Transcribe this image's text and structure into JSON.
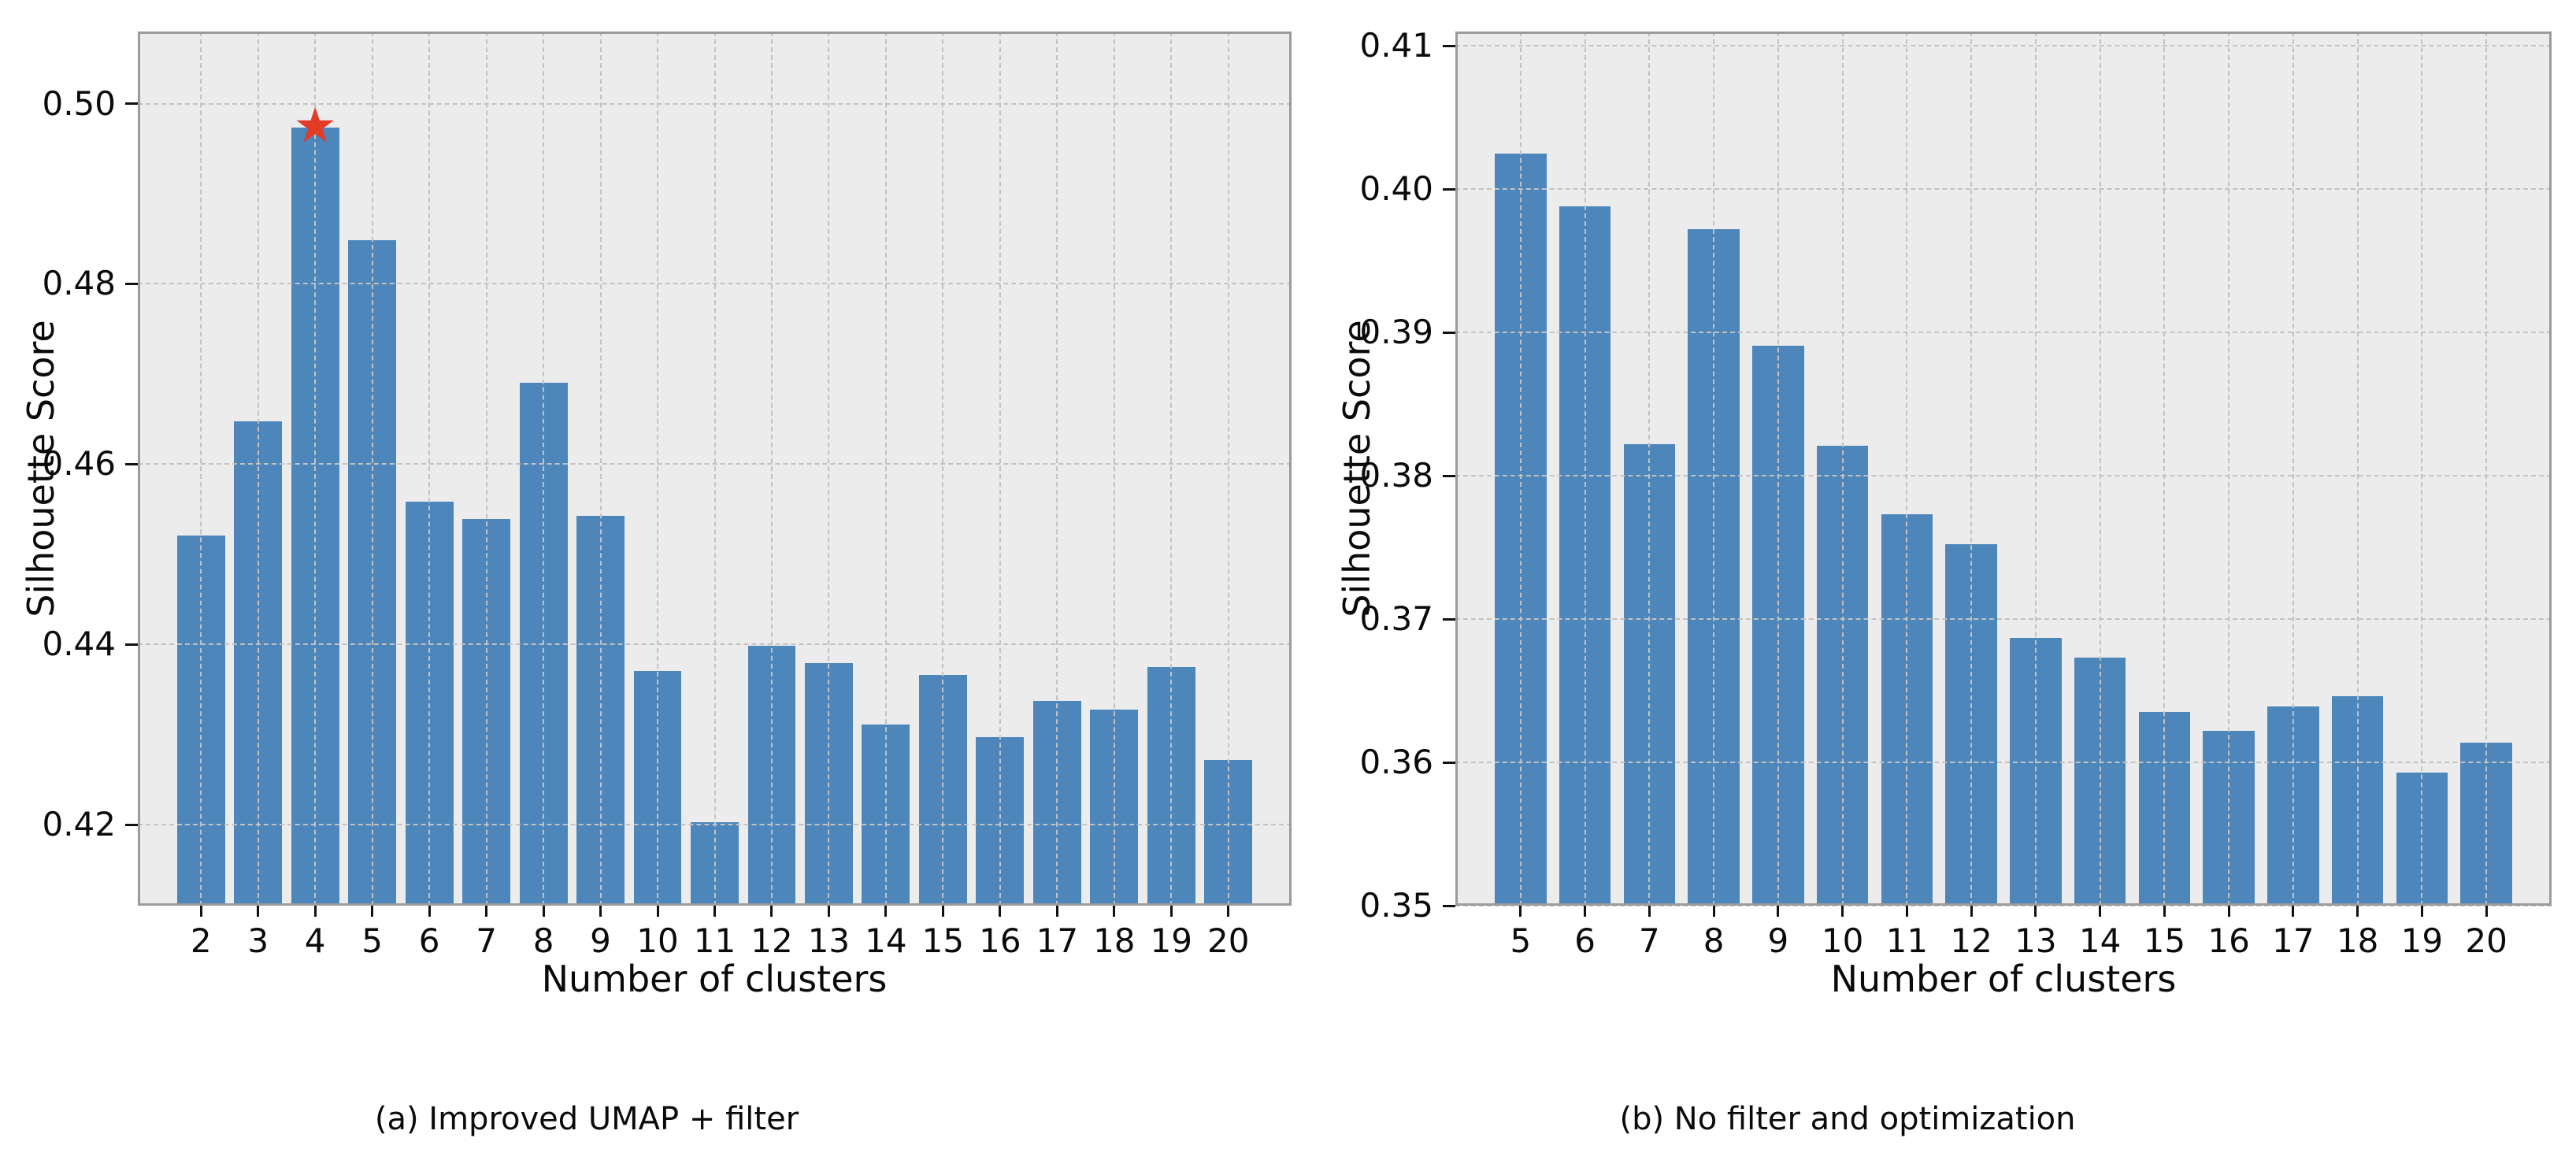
{
  "colors": {
    "bar": "#4d86bb",
    "star": "#e23b26",
    "plot_background": "#ececec",
    "grid": "#c2c2c2",
    "frame": "#9b9b9b",
    "text": "#0a0a0a",
    "page_background": "#ffffff"
  },
  "chart_data": [
    {
      "type": "bar",
      "caption": "(a) Improved UMAP + filter",
      "xlabel": "Number of clusters",
      "ylabel": "Silhouette Score",
      "categories": [
        2,
        3,
        4,
        5,
        6,
        7,
        8,
        9,
        10,
        11,
        12,
        13,
        14,
        15,
        16,
        17,
        18,
        19,
        20
      ],
      "values": [
        0.4521,
        0.4647,
        0.4973,
        0.4848,
        0.4558,
        0.4539,
        0.469,
        0.4543,
        0.437,
        0.4203,
        0.4398,
        0.4379,
        0.4311,
        0.4366,
        0.4297,
        0.4337,
        0.4328,
        0.4375,
        0.4272
      ],
      "ylim": [
        0.411,
        0.508
      ],
      "yticks": [
        "0.42",
        "0.44",
        "0.46",
        "0.48",
        "0.50"
      ],
      "grid": "dashed-both-axes",
      "legend": "none",
      "annotation": {
        "marker": "star",
        "glyph": "★",
        "category": 4,
        "value": 0.4973,
        "meaning": "best-silhouette-score"
      }
    },
    {
      "type": "bar",
      "caption": "(b) No filter and optimization",
      "xlabel": "Number of clusters",
      "ylabel": "Silhouette Score",
      "categories": [
        5,
        6,
        7,
        8,
        9,
        10,
        11,
        12,
        13,
        14,
        15,
        16,
        17,
        18,
        19,
        20
      ],
      "values": [
        0.4025,
        0.3988,
        0.3822,
        0.3972,
        0.3891,
        0.3821,
        0.3773,
        0.3752,
        0.3687,
        0.3673,
        0.3635,
        0.3622,
        0.3639,
        0.3646,
        0.3593,
        0.3614
      ],
      "ylim": [
        0.35,
        0.411
      ],
      "yticks": [
        "0.35",
        "0.36",
        "0.37",
        "0.38",
        "0.39",
        "0.40",
        "0.41"
      ],
      "grid": "dashed-both-axes",
      "legend": "none",
      "annotation": null
    }
  ]
}
